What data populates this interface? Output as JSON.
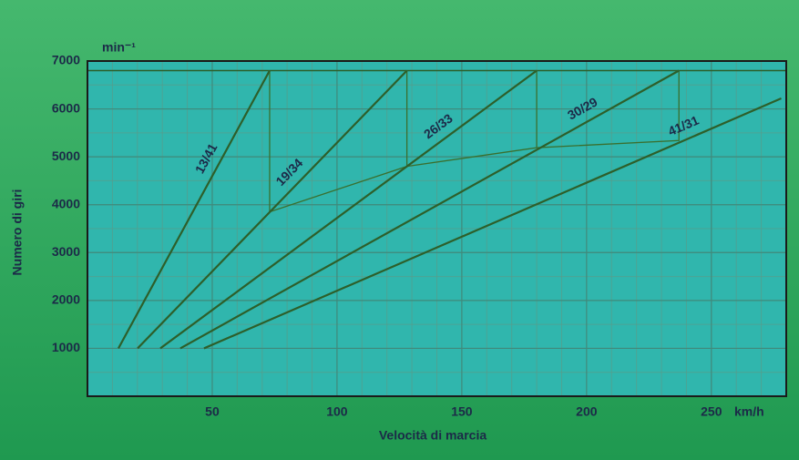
{
  "chart_data": {
    "type": "line",
    "xlabel": "Velocità di marcia",
    "ylabel": "Numero di giri",
    "x_unit": "km/h",
    "y_unit": "min⁻¹",
    "xlim": [
      0,
      280
    ],
    "ylim": [
      0,
      7000
    ],
    "xticks": [
      50,
      100,
      150,
      200,
      250
    ],
    "yticks": [
      1000,
      2000,
      3000,
      4000,
      5000,
      6000,
      7000
    ],
    "grid": true,
    "reference_line": 6800,
    "series": [
      {
        "name": "13/41",
        "color": "#2d5f2a",
        "x": [
          12.4,
          73
        ],
        "values": [
          1000,
          6800
        ]
      },
      {
        "name": "19/34",
        "color": "#2d5f2a",
        "x": [
          20.1,
          128
        ],
        "values": [
          1000,
          6800
        ]
      },
      {
        "name": "26/33",
        "color": "#2d5f2a",
        "x": [
          29.2,
          180
        ],
        "values": [
          1000,
          6800
        ]
      },
      {
        "name": "30/29",
        "color": "#2d5f2a",
        "x": [
          37.2,
          237
        ],
        "values": [
          1000,
          6800
        ]
      },
      {
        "name": "41/31",
        "color": "#2d5f2a",
        "x": [
          46.7,
          278
        ],
        "values": [
          1000,
          6220
        ]
      }
    ],
    "shift_path": {
      "color": "#3a6f2e",
      "x": [
        73,
        73,
        128,
        128,
        128,
        180,
        180,
        180,
        237,
        237
      ],
      "values": [
        6800,
        3850,
        4800,
        6800,
        4800,
        5190,
        6800,
        5190,
        5340,
        6800
      ]
    }
  }
}
